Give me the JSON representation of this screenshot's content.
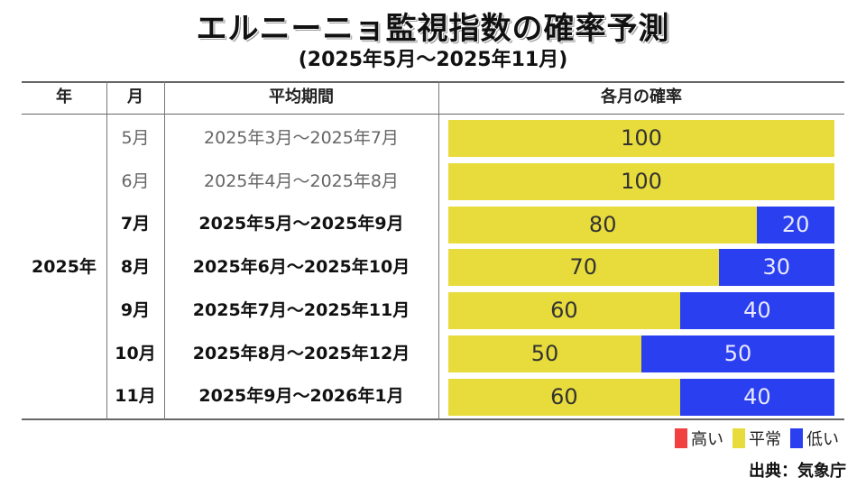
{
  "title": "エルニーニョ監視指数の確率予測",
  "subtitle": "(2025年5月～2025年11月)",
  "columns": [
    "年",
    "月",
    "平均期間",
    "各月の確率"
  ],
  "year": "2025年",
  "colors": {
    "high": "#f04040",
    "normal": "#e8dc3c",
    "low": "#2a3ff0"
  },
  "legend": [
    {
      "key": "high",
      "label": "高い"
    },
    {
      "key": "normal",
      "label": "平常"
    },
    {
      "key": "low",
      "label": "低い"
    }
  ],
  "source": "出典：気象庁",
  "chart_data": {
    "type": "bar",
    "stacked": true,
    "orientation": "horizontal",
    "categories": [
      "5月",
      "6月",
      "7月",
      "8月",
      "9月",
      "10月",
      "11月"
    ],
    "periods": [
      "2025年3月～2025年7月",
      "2025年4月～2025年8月",
      "2025年5月～2025年9月",
      "2025年6月～2025年10月",
      "2025年7月～2025年11月",
      "2025年8月～2025年12月",
      "2025年9月～2026年1月"
    ],
    "bold": [
      false,
      false,
      true,
      true,
      true,
      true,
      true
    ],
    "series": [
      {
        "name": "高い",
        "values": [
          0,
          0,
          0,
          0,
          0,
          0,
          0
        ]
      },
      {
        "name": "平常",
        "values": [
          100,
          100,
          80,
          70,
          60,
          50,
          60
        ]
      },
      {
        "name": "低い",
        "values": [
          0,
          0,
          20,
          30,
          40,
          50,
          40
        ]
      }
    ],
    "xlim": [
      0,
      100
    ]
  }
}
